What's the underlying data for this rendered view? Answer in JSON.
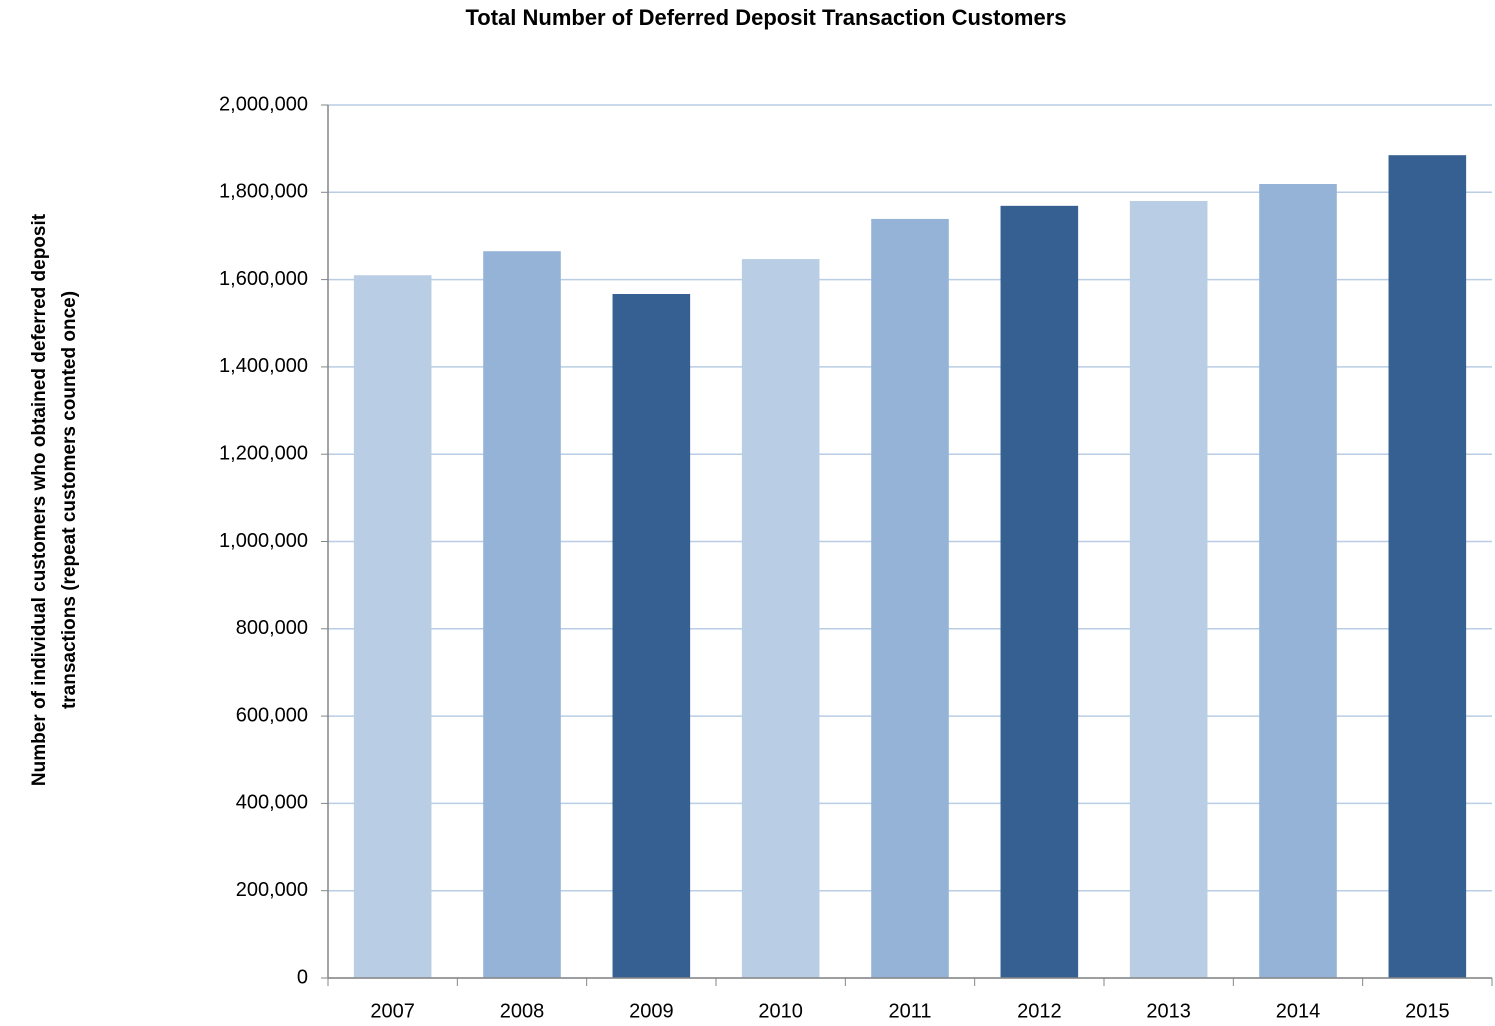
{
  "chart_data": {
    "type": "bar",
    "title": "Total Number of Deferred Deposit Transaction Customers",
    "ylabel": [
      "Number of individual customers who obtained deferred deposit",
      "transactions (repeat customers counted once)"
    ],
    "categories": [
      "2007",
      "2008",
      "2009",
      "2010",
      "2011",
      "2012",
      "2013",
      "2014",
      "2015"
    ],
    "values": [
      1610000,
      1665000,
      1567000,
      1647000,
      1739000,
      1769000,
      1780000,
      1819000,
      1885000
    ],
    "colors": [
      "#b9cde4",
      "#95b3d7",
      "#366092",
      "#b9cde4",
      "#95b3d7",
      "#366092",
      "#b9cde4",
      "#95b3d7",
      "#366092"
    ],
    "ylim": [
      0,
      2000000
    ],
    "yticks": [
      0,
      {
        "value": 200000,
        "label": "200,000"
      },
      {
        "value": 400000,
        "label": "400,000"
      },
      {
        "value": 600000,
        "label": "600,000"
      },
      {
        "value": 800000,
        "label": "800,000"
      },
      {
        "value": 1000000,
        "label": "1,000,000"
      },
      {
        "value": 1200000,
        "label": "1,200,000"
      },
      {
        "value": 1400000,
        "label": "1,400,000"
      },
      {
        "value": 1600000,
        "label": "1,600,000"
      },
      {
        "value": 1800000,
        "label": "1,800,000"
      },
      {
        "value": 2000000,
        "label": "2,000,000"
      }
    ],
    "grid": true
  }
}
